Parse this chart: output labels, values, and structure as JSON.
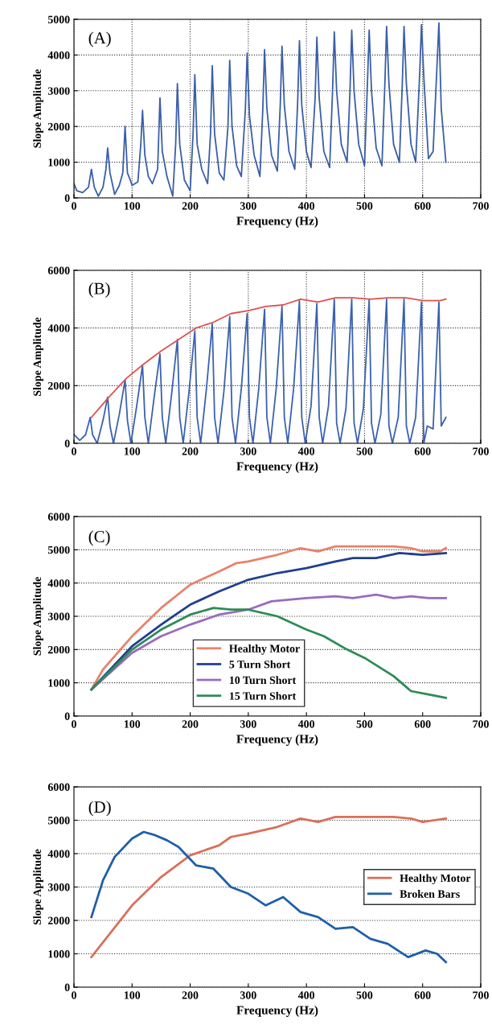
{
  "chart_data": [
    {
      "type": "line",
      "xlabel": "Frequency (Hz)",
      "ylabel": "Slope Amplitude",
      "annotations": [
        "(A)"
      ],
      "xlim": [
        0,
        700
      ],
      "ylim": [
        0,
        5000
      ],
      "xticks": [
        0,
        100,
        200,
        300,
        400,
        500,
        600,
        700
      ],
      "yticks": [
        0,
        1000,
        2000,
        3000,
        4000,
        5000
      ],
      "grid": true,
      "legend": false,
      "series": [
        {
          "color": "#3a5fa8",
          "x": [
            0,
            5,
            15,
            25,
            30,
            35,
            42,
            50,
            55,
            58,
            62,
            70,
            78,
            84,
            88,
            92,
            97,
            100,
            110,
            115,
            118,
            122,
            128,
            135,
            144,
            148,
            152,
            160,
            170,
            175,
            178,
            182,
            190,
            200,
            205,
            208,
            212,
            220,
            230,
            235,
            238,
            242,
            250,
            258,
            265,
            268,
            272,
            280,
            288,
            295,
            298,
            302,
            310,
            320,
            325,
            328,
            332,
            340,
            350,
            355,
            358,
            362,
            370,
            380,
            385,
            388,
            392,
            400,
            408,
            415,
            418,
            422,
            430,
            440,
            445,
            448,
            452,
            460,
            470,
            475,
            478,
            482,
            490,
            500,
            505,
            508,
            512,
            520,
            530,
            535,
            538,
            542,
            550,
            560,
            565,
            568,
            572,
            580,
            588,
            595,
            598,
            602,
            610,
            618,
            625,
            628,
            632,
            640
          ],
          "values": [
            400,
            200,
            150,
            300,
            800,
            300,
            50,
            300,
            800,
            1400,
            700,
            100,
            350,
            700,
            2000,
            700,
            500,
            350,
            450,
            1500,
            2450,
            1200,
            600,
            400,
            800,
            2800,
            1300,
            600,
            50,
            1500,
            3200,
            1500,
            500,
            200,
            1800,
            3450,
            1500,
            800,
            400,
            1800,
            3700,
            1800,
            700,
            500,
            2000,
            3850,
            2000,
            900,
            600,
            2500,
            4050,
            2300,
            1200,
            600,
            2500,
            4150,
            2500,
            1200,
            750,
            2600,
            4250,
            2600,
            1300,
            800,
            2700,
            4400,
            2600,
            1300,
            850,
            2800,
            4500,
            2800,
            1300,
            850,
            3000,
            4650,
            3000,
            1500,
            1000,
            3000,
            4700,
            3000,
            1500,
            900,
            3200,
            4700,
            3000,
            1400,
            900,
            3200,
            4800,
            3200,
            1500,
            1000,
            3200,
            4800,
            3200,
            1500,
            1000,
            3500,
            4850,
            3400,
            1100,
            1300,
            3800,
            4900,
            2500,
            1000
          ]
        }
      ]
    },
    {
      "type": "line",
      "xlabel": "Frequency (Hz)",
      "ylabel": "Slope Amplitude",
      "annotations": [
        "(B)"
      ],
      "xlim": [
        0,
        700
      ],
      "ylim": [
        0,
        6000
      ],
      "xticks": [
        0,
        100,
        200,
        300,
        400,
        500,
        600,
        700
      ],
      "yticks": [
        0,
        2000,
        4000,
        6000
      ],
      "grid": true,
      "legend": false,
      "series": [
        {
          "color": "#3b62b0",
          "x": [
            0,
            10,
            20,
            28,
            32,
            40,
            50,
            58,
            62,
            68,
            78,
            88,
            92,
            98,
            108,
            118,
            122,
            128,
            138,
            148,
            152,
            158,
            168,
            178,
            182,
            188,
            198,
            208,
            212,
            218,
            228,
            238,
            242,
            248,
            258,
            268,
            272,
            278,
            288,
            298,
            302,
            308,
            318,
            328,
            332,
            338,
            348,
            358,
            362,
            368,
            378,
            388,
            392,
            398,
            408,
            418,
            422,
            428,
            438,
            448,
            452,
            458,
            468,
            478,
            482,
            488,
            498,
            508,
            512,
            518,
            528,
            538,
            542,
            548,
            558,
            568,
            572,
            578,
            588,
            598,
            602,
            608,
            618,
            628,
            632,
            640
          ],
          "values": [
            300,
            100,
            300,
            900,
            300,
            0,
            800,
            1600,
            600,
            0,
            1000,
            2200,
            800,
            0,
            1300,
            2700,
            900,
            0,
            1600,
            3100,
            900,
            0,
            1700,
            3600,
            900,
            0,
            1800,
            3900,
            900,
            0,
            1900,
            4150,
            900,
            0,
            1800,
            4400,
            900,
            0,
            1900,
            4500,
            900,
            0,
            1900,
            4650,
            900,
            0,
            1900,
            4750,
            900,
            0,
            1900,
            4950,
            900,
            0,
            1300,
            4850,
            900,
            0,
            1300,
            5000,
            700,
            0,
            1200,
            5000,
            700,
            0,
            1200,
            5000,
            700,
            0,
            1000,
            5000,
            600,
            0,
            900,
            5000,
            600,
            0,
            900,
            4900,
            0,
            600,
            500,
            4900,
            600,
            900
          ]
        },
        {
          "color": "#e05050",
          "x": [
            30,
            60,
            90,
            120,
            150,
            180,
            210,
            240,
            270,
            300,
            330,
            360,
            390,
            420,
            450,
            480,
            510,
            540,
            570,
            600,
            630,
            640
          ],
          "values": [
            900,
            1600,
            2250,
            2750,
            3200,
            3600,
            4000,
            4200,
            4500,
            4600,
            4750,
            4800,
            5000,
            4900,
            5050,
            5050,
            5000,
            5050,
            5050,
            4950,
            4950,
            5000
          ]
        }
      ]
    },
    {
      "type": "line",
      "xlabel": "Frequency (Hz)",
      "ylabel": "Slope Amplitude",
      "annotations": [
        "(C)"
      ],
      "xlim": [
        0,
        700
      ],
      "ylim": [
        0,
        6000
      ],
      "xticks": [
        0,
        100,
        200,
        300,
        400,
        500,
        600,
        700
      ],
      "yticks": [
        0,
        1000,
        2000,
        3000,
        4000,
        5000,
        6000
      ],
      "grid": "y",
      "legend": "bottom",
      "series": [
        {
          "name": "Healthy Motor",
          "color": "#e8826a",
          "x": [
            30,
            50,
            100,
            150,
            200,
            250,
            280,
            300,
            350,
            390,
            420,
            450,
            500,
            550,
            580,
            600,
            630,
            640
          ],
          "values": [
            800,
            1400,
            2400,
            3250,
            3950,
            4350,
            4600,
            4650,
            4850,
            5050,
            4950,
            5100,
            5100,
            5100,
            5050,
            4950,
            4950,
            5050
          ]
        },
        {
          "name": "5 Turn Short",
          "color": "#1f3f8f",
          "x": [
            30,
            100,
            150,
            200,
            250,
            300,
            350,
            400,
            450,
            480,
            520,
            560,
            600,
            640
          ],
          "values": [
            800,
            2100,
            2750,
            3350,
            3750,
            4100,
            4300,
            4450,
            4650,
            4750,
            4750,
            4900,
            4850,
            4900
          ]
        },
        {
          "name": "10 Turn Short",
          "color": "#9b6bbd",
          "x": [
            30,
            100,
            150,
            200,
            250,
            300,
            340,
            400,
            450,
            480,
            520,
            550,
            580,
            610,
            640
          ],
          "values": [
            800,
            1900,
            2400,
            2750,
            3050,
            3200,
            3450,
            3550,
            3600,
            3550,
            3650,
            3550,
            3600,
            3550,
            3550
          ]
        },
        {
          "name": "15 Turn Short",
          "color": "#2e8b57",
          "x": [
            30,
            100,
            150,
            200,
            240,
            270,
            300,
            350,
            400,
            430,
            470,
            500,
            550,
            580,
            610,
            640
          ],
          "values": [
            800,
            2000,
            2600,
            3050,
            3250,
            3200,
            3200,
            3000,
            2600,
            2400,
            2000,
            1750,
            1200,
            750,
            650,
            550
          ]
        }
      ]
    },
    {
      "type": "line",
      "xlabel": "Frequency (Hz)",
      "ylabel": "Slope Applitude",
      "annotations": [
        "(D)"
      ],
      "xlim": [
        0,
        700
      ],
      "ylim": [
        0,
        6000
      ],
      "xticks": [
        0,
        100,
        200,
        300,
        400,
        500,
        600,
        700
      ],
      "yticks": [
        0,
        1000,
        2000,
        3000,
        4000,
        5000,
        6000
      ],
      "grid": "y",
      "legend": "right",
      "series": [
        {
          "name": "Healthy Motor",
          "color": "#d9705a",
          "x": [
            30,
            100,
            150,
            200,
            250,
            270,
            300,
            350,
            390,
            420,
            450,
            500,
            550,
            580,
            600,
            640
          ],
          "values": [
            900,
            2450,
            3300,
            3950,
            4250,
            4500,
            4600,
            4800,
            5050,
            4950,
            5100,
            5100,
            5100,
            5050,
            4950,
            5050
          ]
        },
        {
          "name": "Broken Bars",
          "color": "#1f5fa8",
          "x": [
            30,
            50,
            70,
            100,
            120,
            140,
            160,
            180,
            210,
            240,
            270,
            300,
            330,
            360,
            390,
            420,
            450,
            480,
            510,
            540,
            575,
            605,
            625,
            640
          ],
          "values": [
            2100,
            3200,
            3900,
            4450,
            4650,
            4550,
            4400,
            4200,
            3650,
            3550,
            3000,
            2800,
            2450,
            2700,
            2250,
            2100,
            1750,
            1800,
            1450,
            1300,
            900,
            1100,
            1000,
            750
          ]
        }
      ]
    }
  ]
}
